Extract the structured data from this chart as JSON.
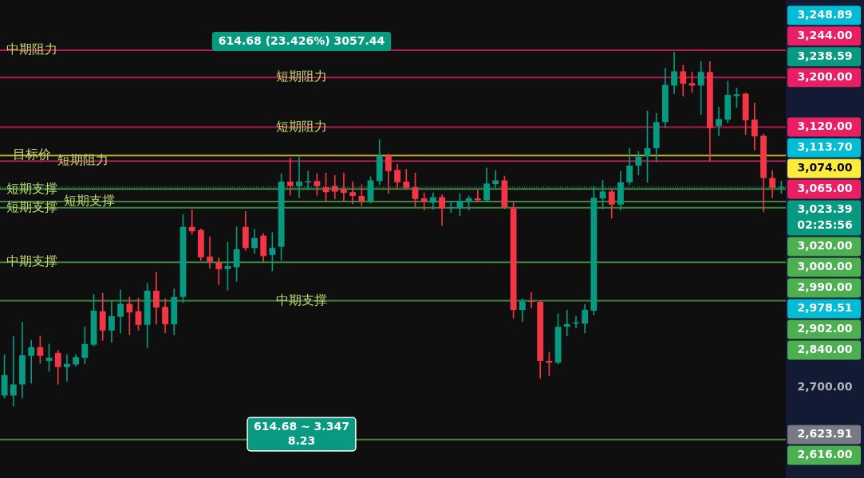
{
  "chart_data": {
    "type": "candlestick",
    "categories": [
      null,
      null,
      null,
      null,
      null,
      null,
      null,
      null,
      null,
      null,
      null,
      null,
      null,
      null,
      null,
      null,
      null,
      null,
      null,
      null,
      null,
      null,
      null,
      null,
      null,
      null,
      null,
      null,
      null,
      null,
      null,
      null,
      null,
      null,
      null,
      null,
      null,
      null,
      null,
      null,
      null,
      null,
      null,
      null,
      null,
      null,
      null,
      null,
      null,
      null,
      null,
      null,
      null,
      null,
      null,
      null,
      null,
      null,
      null,
      null,
      null,
      null,
      null,
      null,
      null,
      null,
      null,
      null,
      null,
      null,
      null,
      null,
      null,
      null,
      null,
      null,
      null,
      null,
      null,
      null,
      null,
      null,
      null,
      null,
      null,
      null,
      null,
      null
    ],
    "ohlc": [
      [
        2687,
        2753,
        2683,
        2720
      ],
      [
        2687,
        2782,
        2670,
        2705
      ],
      [
        2705,
        2805,
        2683,
        2752
      ],
      [
        2751,
        2776,
        2707,
        2765
      ],
      [
        2765,
        2783,
        2739,
        2751
      ],
      [
        2743,
        2770,
        2726,
        2748
      ],
      [
        2756,
        2760,
        2705,
        2733
      ],
      [
        2733,
        2753,
        2710,
        2738
      ],
      [
        2737,
        2753,
        2734,
        2749
      ],
      [
        2748,
        2798,
        2738,
        2770
      ],
      [
        2769,
        2850,
        2767,
        2824
      ],
      [
        2823,
        2852,
        2776,
        2792
      ],
      [
        2792,
        2839,
        2773,
        2815
      ],
      [
        2814,
        2857,
        2788,
        2835
      ],
      [
        2835,
        2846,
        2785,
        2821
      ],
      [
        2823,
        2844,
        2792,
        2801
      ],
      [
        2801,
        2868,
        2764,
        2856
      ],
      [
        2856,
        2886,
        2802,
        2829
      ],
      [
        2830,
        2843,
        2788,
        2802
      ],
      [
        2802,
        2859,
        2785,
        2846
      ],
      [
        2846,
        2979,
        2837,
        2959
      ],
      [
        2959,
        2987,
        2947,
        2952
      ],
      [
        2954,
        2956,
        2905,
        2910
      ],
      [
        2911,
        2943,
        2892,
        2903
      ],
      [
        2901,
        2909,
        2866,
        2891
      ],
      [
        2891,
        2934,
        2857,
        2896
      ],
      [
        2894,
        2959,
        2871,
        2923
      ],
      [
        2959,
        2984,
        2921,
        2925
      ],
      [
        2925,
        2955,
        2916,
        2941
      ],
      [
        2945,
        2948,
        2903,
        2912
      ],
      [
        2914,
        2950,
        2888,
        2925
      ],
      [
        2927,
        3045,
        2905,
        3032
      ],
      [
        3032,
        3070,
        3010,
        3025
      ],
      [
        3025,
        3072,
        3006,
        3032
      ],
      [
        3031,
        3049,
        3019,
        3033
      ],
      [
        3033,
        3045,
        3010,
        3025
      ],
      [
        3023,
        3046,
        3000,
        3015
      ],
      [
        3025,
        3042,
        3004,
        3016
      ],
      [
        3020,
        3046,
        3001,
        3014
      ],
      [
        3015,
        3032,
        2996,
        3009
      ],
      [
        3009,
        3027,
        2993,
        3001
      ],
      [
        3001,
        3040,
        2997,
        3034
      ],
      [
        3033,
        3100,
        3027,
        3074
      ],
      [
        3074,
        3077,
        3013,
        3049
      ],
      [
        3051,
        3060,
        3020,
        3031
      ],
      [
        3032,
        3052,
        3019,
        3022
      ],
      [
        3023,
        3046,
        2992,
        3004
      ],
      [
        3005,
        3014,
        2986,
        3000
      ],
      [
        2998,
        3014,
        2987,
        3007
      ],
      [
        3007,
        3011,
        2961,
        2989
      ],
      [
        2989,
        3000,
        2982,
        2991
      ],
      [
        2989,
        3013,
        2977,
        3001
      ],
      [
        3000,
        3009,
        2986,
        3005
      ],
      [
        3005,
        3018,
        3000,
        3002
      ],
      [
        3002,
        3054,
        3001,
        3029
      ],
      [
        3028,
        3050,
        3022,
        3034
      ],
      [
        3034,
        3041,
        2988,
        2991
      ],
      [
        2989,
        2998,
        2812,
        2825
      ],
      [
        2825,
        2843,
        2806,
        2839
      ],
      [
        2839,
        2853,
        2828,
        2838
      ],
      [
        2838,
        2839,
        2715,
        2743
      ],
      [
        2743,
        2757,
        2719,
        2740
      ],
      [
        2740,
        2819,
        2738,
        2798
      ],
      [
        2798,
        2825,
        2783,
        2802
      ],
      [
        2803,
        2815,
        2796,
        2805
      ],
      [
        2803,
        2834,
        2788,
        2825
      ],
      [
        2824,
        3025,
        2817,
        3006
      ],
      [
        3005,
        3034,
        2988,
        3016
      ],
      [
        3016,
        3020,
        2973,
        2995
      ],
      [
        2995,
        3049,
        2986,
        3031
      ],
      [
        3031,
        3086,
        3027,
        3058
      ],
      [
        3058,
        3081,
        3043,
        3072
      ],
      [
        3073,
        3146,
        3031,
        3086
      ],
      [
        3086,
        3142,
        3064,
        3128
      ],
      [
        3128,
        3215,
        3119,
        3188
      ],
      [
        3187,
        3241,
        3174,
        3210
      ],
      [
        3210,
        3220,
        3170,
        3190
      ],
      [
        3191,
        3209,
        3176,
        3187
      ],
      [
        3187,
        3226,
        3140,
        3209
      ],
      [
        3209,
        3226,
        3066,
        3118
      ],
      [
        3122,
        3152,
        3106,
        3133
      ],
      [
        3132,
        3194,
        3127,
        3172
      ],
      [
        3170,
        3183,
        3152,
        3173
      ],
      [
        3174,
        3175,
        3108,
        3131
      ],
      [
        3132,
        3159,
        3083,
        3105
      ],
      [
        3106,
        3109,
        2983,
        3038
      ],
      [
        3038,
        3050,
        3006,
        3022
      ],
      [
        3022,
        3033,
        3013,
        3023
      ]
    ],
    "ylim": [
      2554,
      3325
    ],
    "yticks": [
      {
        "value": 3200,
        "label": "3,200.00"
      },
      {
        "value": 2700,
        "label": "2,700.00"
      }
    ],
    "ref_lines": [
      {
        "axis": "y",
        "value": 3244,
        "label": "中期阻力",
        "color": "#e91e63"
      },
      {
        "axis": "y",
        "value": 3200,
        "label": "短期阻力",
        "color": "#e91e63"
      },
      {
        "axis": "y",
        "value": 3120,
        "label": "短期阻力",
        "color": "#e91e63"
      },
      {
        "axis": "y",
        "value": 3074,
        "label": "目标价",
        "color": "#ffeb3b"
      },
      {
        "axis": "y",
        "value": 3065,
        "label": "短期阻力",
        "color": "#e91e63"
      },
      {
        "axis": "y",
        "value": 3023.39,
        "color": "#089981",
        "line_style": "dotted"
      },
      {
        "axis": "y",
        "value": 3020,
        "label": "短期支撑",
        "color": "#4caf50"
      },
      {
        "axis": "y",
        "value": 3000,
        "label": "短期支撑",
        "color": "#4caf50"
      },
      {
        "axis": "y",
        "value": 2990,
        "label": "短期支撑",
        "color": "#4caf50"
      },
      {
        "axis": "y",
        "value": 2902,
        "label": "中期支撑",
        "color": "#4caf50"
      },
      {
        "axis": "y",
        "value": 2840,
        "label": "中期支撑",
        "color": "#4caf50"
      },
      {
        "axis": "y",
        "value": 2616,
        "color": "#4caf50"
      }
    ],
    "annotations": [
      "614.68 (23.426%) 3057.44",
      "614.68 ~ 3.347\n8.23",
      "3,248.89",
      "3,244.00",
      "3,238.59",
      "3,120.00",
      "3,113.70",
      "3,074.00",
      "3,065.00",
      "3,023.39\n02:25:56",
      "3,020.00",
      "3,000.00",
      "2,990.00",
      "2,978.51",
      "2,902.00",
      "2,840.00",
      "2,623.91",
      "2,616.00"
    ]
  }
}
